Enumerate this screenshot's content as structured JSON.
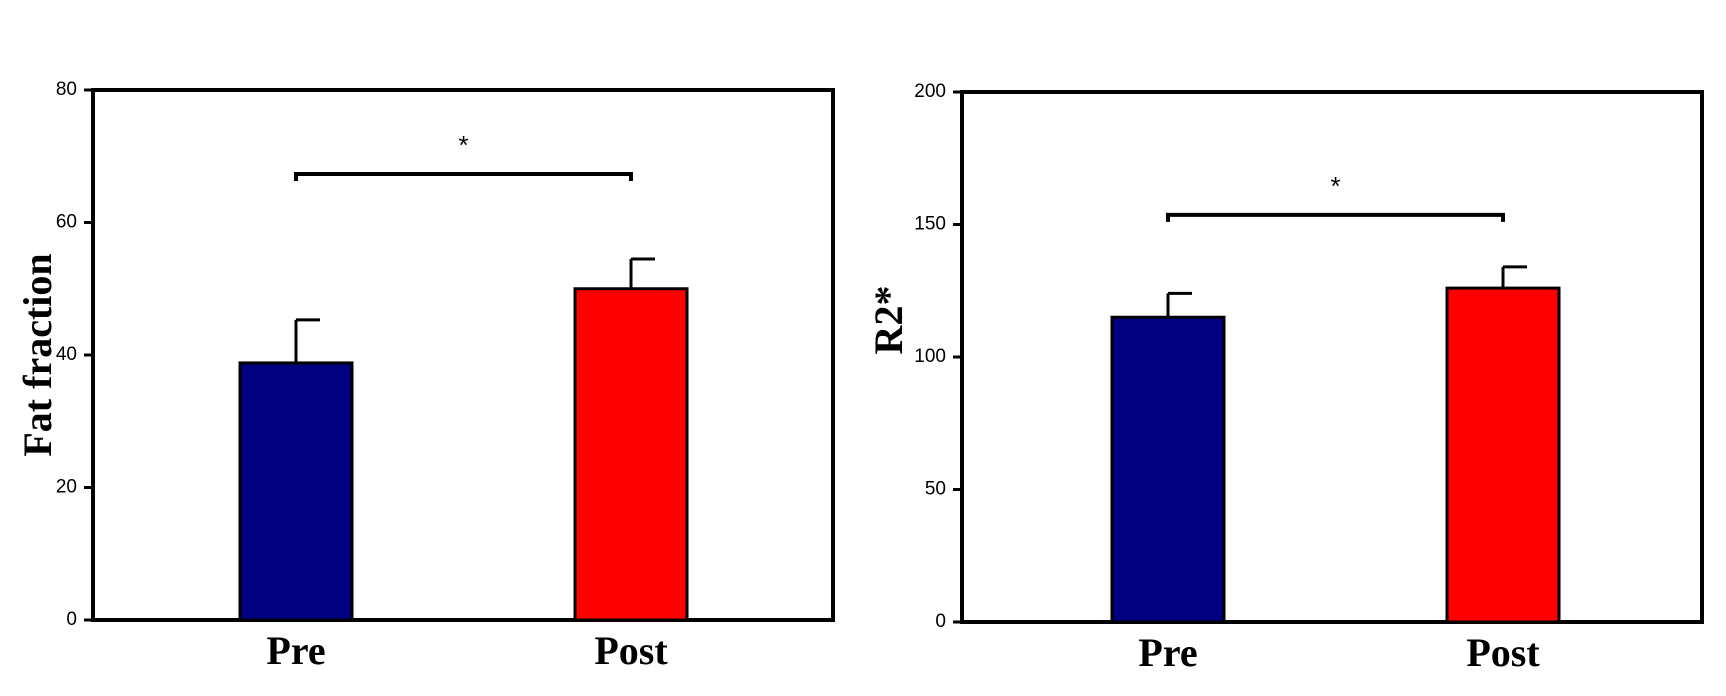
{
  "chart_data": [
    {
      "type": "bar",
      "title": "",
      "xlabel": "",
      "ylabel": "Fat fraction",
      "categories": [
        "Pre",
        "Post"
      ],
      "values": [
        38.8,
        50.0
      ],
      "errors": [
        6.5,
        4.5
      ],
      "colors": [
        "#000080",
        "#ff0000"
      ],
      "ylim": [
        0,
        80
      ],
      "yticks": [
        0,
        20,
        40,
        60,
        80
      ],
      "grid": false,
      "legend": "none",
      "significance": {
        "from": "Pre",
        "to": "Post",
        "label": "*"
      }
    },
    {
      "type": "bar",
      "title": "",
      "xlabel": "",
      "ylabel": "R2*",
      "categories": [
        "Pre",
        "Post"
      ],
      "values": [
        115,
        126
      ],
      "errors": [
        9,
        8
      ],
      "colors": [
        "#000080",
        "#ff0000"
      ],
      "ylim": [
        0,
        200
      ],
      "yticks": [
        0,
        50,
        100,
        150,
        200
      ],
      "grid": false,
      "legend": "none",
      "significance": {
        "from": "Pre",
        "to": "Post",
        "label": "*"
      }
    }
  ]
}
